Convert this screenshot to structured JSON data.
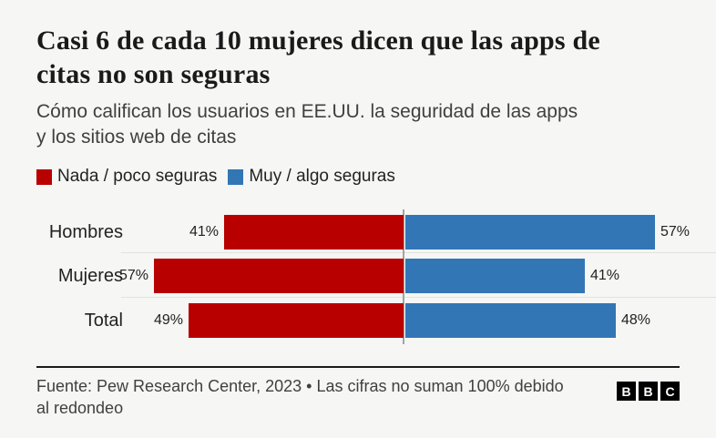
{
  "title": "Casi 6 de cada 10 mujeres dicen que las apps de\ncitas no son seguras",
  "subtitle": "Cómo califican los usuarios en EE.UU. la seguridad de las apps\ny los sitios web de citas",
  "legend": [
    {
      "label": "Nada / poco seguras",
      "color": "#b80000"
    },
    {
      "label": "Muy / algo seguras",
      "color": "#3276b5"
    }
  ],
  "chart_data": {
    "type": "bar",
    "variant": "diverging-horizontal",
    "title": "Casi 6 de cada 10 mujeres dicen que las apps de citas no son seguras",
    "subtitle": "Cómo califican los usuarios en EE.UU. la seguridad de las apps y los sitios web de citas",
    "categories": [
      "Hombres",
      "Mujeres",
      "Total"
    ],
    "series": [
      {
        "name": "Nada / poco seguras",
        "color": "#b80000",
        "side": "left",
        "values": [
          41,
          57,
          49
        ]
      },
      {
        "name": "Muy / algo seguras",
        "color": "#3276b5",
        "side": "right",
        "values": [
          57,
          41,
          48
        ]
      }
    ],
    "value_suffix": "%",
    "axis_max_each_side": 60,
    "grid": "row-separators",
    "legend_position": "top"
  },
  "footer": {
    "source": "Fuente: Pew Research Center, 2023 • Las cifras no suman 100% debido\nal redondeo",
    "logo_letters": [
      "B",
      "B",
      "C"
    ]
  },
  "colors": {
    "background": "#f6f6f5",
    "negative_bar": "#b80000",
    "positive_bar": "#3276b5",
    "center_axis": "#a3a3a3",
    "row_separator": "#e2e2e0",
    "text_dark": "#222222",
    "text_mid": "#404040"
  }
}
